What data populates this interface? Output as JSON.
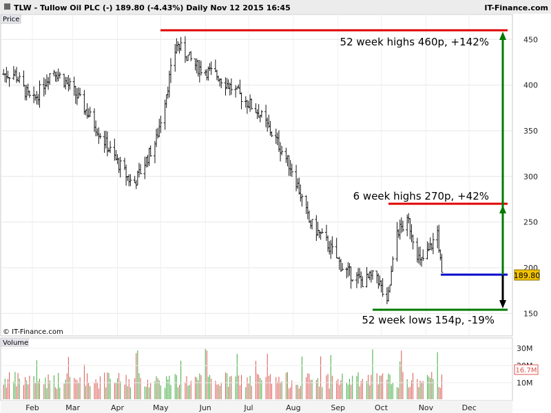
{
  "header": {
    "info": "TLW - Tullow Oil PLC (-)    189.80 (-4.43%)    Daily  Nov 12 2015 16:45",
    "brand": "IT-Finance.com"
  },
  "panels": {
    "price_label": "Price",
    "volume_label": "Volume",
    "copyright": "© IT-Finance.com"
  },
  "colors": {
    "green": "#007a00",
    "red": "#e00000",
    "blue": "#0000cc",
    "last_bg": "#f2c200",
    "volume": "#d9534f"
  },
  "chart_data": [
    {
      "type": "ohlc",
      "series": [
        {
          "name": "TLW",
          "x": [
            "2015-01-20",
            "2015-02-01",
            "2015-02-15",
            "2015-03-01",
            "2015-03-15",
            "2015-03-28",
            "2015-04-12",
            "2015-04-28",
            "2015-05-12",
            "2015-05-26",
            "2015-06-10",
            "2015-06-24",
            "2015-07-08",
            "2015-07-20",
            "2015-08-01",
            "2015-08-12",
            "2015-08-24",
            "2015-09-05",
            "2015-09-18",
            "2015-09-28",
            "2015-10-05",
            "2015-10-12",
            "2015-10-20",
            "2015-10-28",
            "2015-11-03",
            "2015-11-09",
            "2015-11-12"
          ],
          "values": [
            412,
            380,
            418,
            395,
            360,
            325,
            290,
            340,
            445,
            420,
            410,
            390,
            370,
            340,
            305,
            250,
            228,
            198,
            185,
            192,
            158,
            240,
            250,
            205,
            218,
            240,
            189.8
          ]
        }
      ],
      "ylim": [
        130,
        475
      ],
      "yticks": [
        150,
        200,
        250,
        300,
        350,
        400,
        450
      ],
      "xlim": [
        "2015-01-10",
        "2015-12-31"
      ],
      "xticks": [
        "Feb",
        "Mar",
        "Apr",
        "May",
        "Jun",
        "Jul",
        "Aug",
        "Sep",
        "Oct",
        "Nov",
        "Dec"
      ],
      "last_price": "189.80",
      "annotations": [
        {
          "text": "52 week highs 460p, +142%",
          "level": 460
        },
        {
          "text": "6 week highs 270p, +42%",
          "level": 270
        },
        {
          "text": "52 week lows 154p, -19%",
          "level": 154
        }
      ],
      "grid": true
    },
    {
      "type": "bar",
      "title": "Volume",
      "yticks": [
        "30M",
        "20M",
        "10M"
      ],
      "ylim": [
        0,
        36
      ],
      "last_value": "16.7M"
    }
  ]
}
